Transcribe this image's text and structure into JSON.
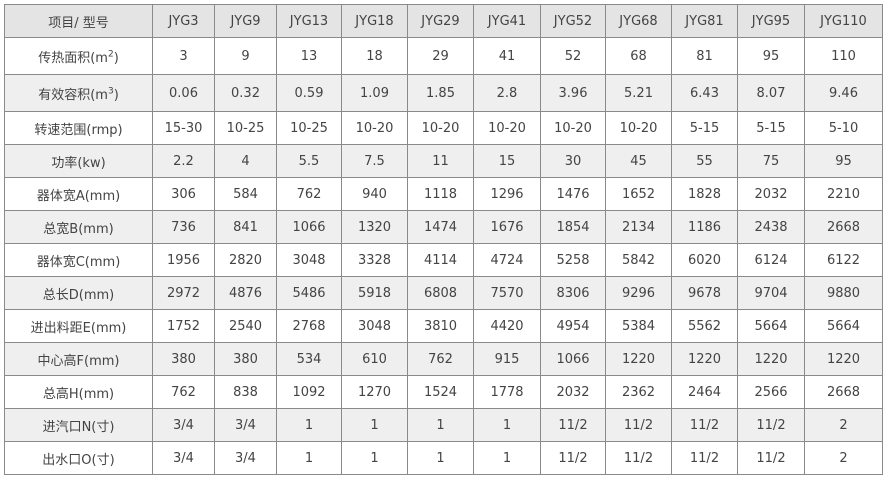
{
  "table": {
    "corner_header": "项目/ 型号",
    "models": [
      "JYG3",
      "JYG9",
      "JYG13",
      "JYG18",
      "JYG29",
      "JYG41",
      "JYG52",
      "JYG68",
      "JYG81",
      "JYG95",
      "JYG110"
    ],
    "rows": [
      {
        "label": "传热面积(m",
        "sup": "2",
        "suffix": ")",
        "values": [
          "3",
          "9",
          "13",
          "18",
          "29",
          "41",
          "52",
          "68",
          "81",
          "95",
          "110"
        ]
      },
      {
        "label": "有效容积(m",
        "sup": "3",
        "suffix": ")",
        "values": [
          "0.06",
          "0.32",
          "0.59",
          "1.09",
          "1.85",
          "2.8",
          "3.96",
          "5.21",
          "6.43",
          "8.07",
          "9.46"
        ]
      },
      {
        "label": "转速范围(rmp)",
        "values": [
          "15-30",
          "10-25",
          "10-25",
          "10-20",
          "10-20",
          "10-20",
          "10-20",
          "10-20",
          "5-15",
          "5-15",
          "5-10"
        ]
      },
      {
        "label": "功率(kw)",
        "values": [
          "2.2",
          "4",
          "5.5",
          "7.5",
          "11",
          "15",
          "30",
          "45",
          "55",
          "75",
          "95"
        ]
      },
      {
        "label": "器体宽A(mm)",
        "values": [
          "306",
          "584",
          "762",
          "940",
          "1118",
          "1296",
          "1476",
          "1652",
          "1828",
          "2032",
          "2210"
        ]
      },
      {
        "label": "总宽B(mm)",
        "values": [
          "736",
          "841",
          "1066",
          "1320",
          "1474",
          "1676",
          "1854",
          "2134",
          "1186",
          "2438",
          "2668"
        ]
      },
      {
        "label": "器体宽C(mm)",
        "values": [
          "1956",
          "2820",
          "3048",
          "3328",
          "4114",
          "4724",
          "5258",
          "5842",
          "6020",
          "6124",
          "6122"
        ]
      },
      {
        "label": "总长D(mm)",
        "values": [
          "2972",
          "4876",
          "5486",
          "5918",
          "6808",
          "7570",
          "8306",
          "9296",
          "9678",
          "9704",
          "9880"
        ]
      },
      {
        "label": "进出料距E(mm)",
        "values": [
          "1752",
          "2540",
          "2768",
          "3048",
          "3810",
          "4420",
          "4954",
          "5384",
          "5562",
          "5664",
          "5664"
        ]
      },
      {
        "label": "中心高F(mm)",
        "values": [
          "380",
          "380",
          "534",
          "610",
          "762",
          "915",
          "1066",
          "1220",
          "1220",
          "1220",
          "1220"
        ]
      },
      {
        "label": "总高H(mm)",
        "values": [
          "762",
          "838",
          "1092",
          "1270",
          "1524",
          "1778",
          "2032",
          "2362",
          "2464",
          "2566",
          "2668"
        ]
      },
      {
        "label": "进汽口N(寸)",
        "values": [
          "3/4",
          "3/4",
          "1",
          "1",
          "1",
          "1",
          "11/2",
          "11/2",
          "11/2",
          "11/2",
          "2"
        ]
      },
      {
        "label": "出水口O(寸)",
        "values": [
          "3/4",
          "3/4",
          "1",
          "1",
          "1",
          "1",
          "11/2",
          "11/2",
          "11/2",
          "11/2",
          "2"
        ]
      }
    ]
  }
}
